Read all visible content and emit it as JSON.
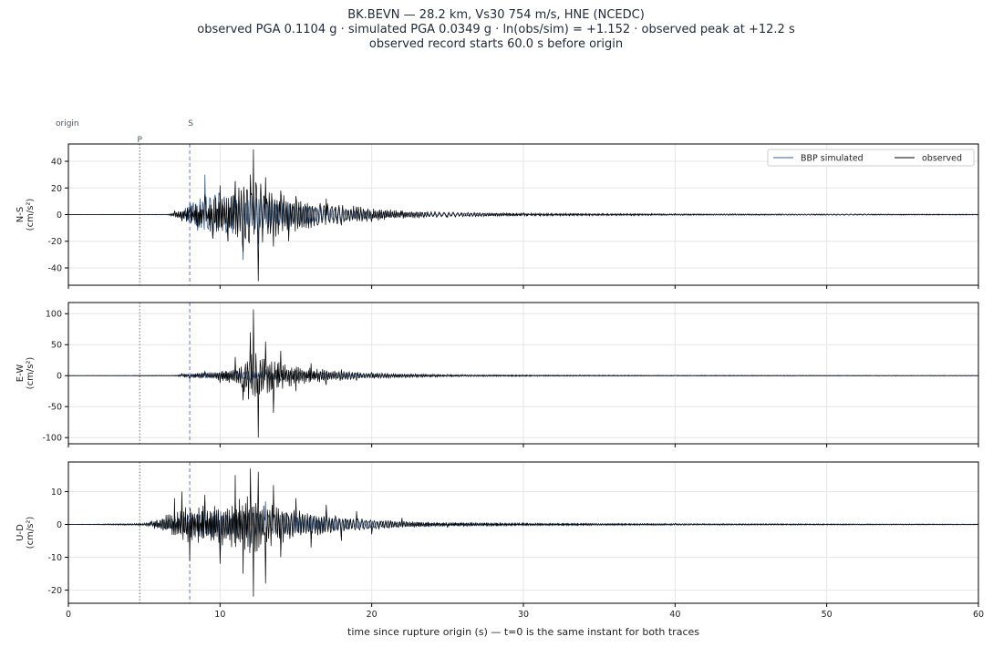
{
  "header": {
    "line1": "BK.BEVN  —  28.2 km, Vs30 754 m/s, HNE (NCEDC)",
    "line2": "observed PGA 0.1104 g   ·   simulated PGA 0.0349 g   ·   ln(obs/sim) = +1.152   ·   observed peak at +12.2 s",
    "line3": "observed record starts 60.0 s before origin"
  },
  "chart_data": {
    "type": "line",
    "xlabel": "time since rupture origin (s)   —   t=0 is the same instant for both traces",
    "xlim": [
      0,
      60
    ],
    "x_ticks": [
      0,
      10,
      20,
      30,
      40,
      50,
      60
    ],
    "grid": true,
    "colors": {
      "simulated": "#3b5f8f",
      "observed": "#000000",
      "p_line": "#6b6b6b",
      "s_line": "#6b6fd6"
    },
    "markers": [
      {
        "label": "origin",
        "t": 0
      },
      {
        "label": "P",
        "t": 4.7
      },
      {
        "label": "S",
        "t": 8.0
      }
    ],
    "legend": {
      "placement": "top-right",
      "entries": [
        "BBP simulated",
        "observed"
      ]
    },
    "panels": [
      {
        "component": "N-S",
        "ylabel_line1": "N-S",
        "ylabel_line2": "(cm/s²)",
        "ylim": [
          -53,
          53
        ],
        "yticks": [
          -40,
          -20,
          0,
          20,
          40
        ],
        "show_legend": true,
        "series": [
          {
            "name": "BBP simulated",
            "x": [
              0,
              6.5,
              7.0,
              7.5,
              8.0,
              8.5,
              9.0,
              9.5,
              10.0,
              10.5,
              11.0,
              11.5,
              12.0,
              12.5,
              13.0,
              13.5,
              14.0,
              14.5,
              15.0,
              16.0,
              17.0,
              18.0,
              19.0,
              20.0,
              22.0,
              25.0,
              30.0,
              40.0,
              60.0
            ],
            "y": [
              0,
              0,
              2,
              -4,
              8,
              -12,
              30,
              -18,
              14,
              -20,
              25,
              -34,
              18,
              -22,
              16,
              -14,
              12,
              -15,
              10,
              -8,
              6,
              -5,
              4,
              -3,
              2,
              -1,
              0.8,
              0.5,
              0
            ],
            "amp": [
              0,
              0.1,
              0.8,
              2.2,
              7.0,
              10.0,
              14.0,
              14.0,
              13.0,
              12.0,
              12.0,
              11.0,
              11.0,
              10.0,
              9.0,
              8.5,
              8.0,
              8.0,
              7.0,
              6.0,
              5.0,
              4.0,
              3.0,
              2.5,
              1.6,
              1.0,
              0.6,
              0.4,
              0.2
            ]
          },
          {
            "name": "observed",
            "x": [
              0,
              6.5,
              7.0,
              7.5,
              8.0,
              8.5,
              9.0,
              9.5,
              10.0,
              10.5,
              11.0,
              11.5,
              12.0,
              12.2,
              12.5,
              13.0,
              13.5,
              14.0,
              14.5,
              15.0,
              16.0,
              17.0,
              18.0,
              19.0,
              20.0,
              22.0,
              25.0,
              30.0,
              40.0,
              60.0
            ],
            "y": [
              0,
              0,
              3,
              -5,
              6,
              -9,
              15,
              -18,
              22,
              -20,
              25,
              -28,
              30,
              49,
              -50,
              28,
              -24,
              18,
              -20,
              14,
              -10,
              12,
              -8,
              6,
              -5,
              3,
              -2,
              1.2,
              0.8,
              0
            ],
            "amp": [
              0,
              0.2,
              1.5,
              3.0,
              5.0,
              7.0,
              9.0,
              11.0,
              12.0,
              13.0,
              15.0,
              17.0,
              19.0,
              20.0,
              20.0,
              17.0,
              15.0,
              13.0,
              12.0,
              11.0,
              9.0,
              7.0,
              6.0,
              5.0,
              4.0,
              2.5,
              1.5,
              0.9,
              0.5,
              0.3
            ]
          }
        ]
      },
      {
        "component": "E-W",
        "ylabel_line1": "E-W",
        "ylabel_line2": "(cm/s²)",
        "ylim": [
          -110,
          118
        ],
        "yticks": [
          -100,
          -50,
          0,
          50,
          100
        ],
        "show_legend": false,
        "series": [
          {
            "name": "BBP simulated",
            "x": [
              0,
              7.0,
              7.5,
              8.0,
              9.0,
              10.0,
              11.0,
              12.0,
              13.0,
              14.0,
              15.0,
              16.0,
              17.0,
              18.0,
              19.0,
              20.0,
              22.0,
              25.0,
              30.0,
              40.0,
              60.0
            ],
            "y": [
              0,
              0,
              3,
              -5,
              8,
              -10,
              14,
              -12,
              10,
              -9,
              8,
              -7,
              6,
              -5,
              4,
              -3,
              2,
              -1.5,
              1,
              0.5,
              0
            ],
            "amp": [
              0,
              0.2,
              2.0,
              3.0,
              4.0,
              5.0,
              6.0,
              6.0,
              5.5,
              5.0,
              5.0,
              4.5,
              4.0,
              3.5,
              3.0,
              2.5,
              1.8,
              1.2,
              0.8,
              0.5,
              0.3
            ]
          },
          {
            "name": "observed",
            "x": [
              0,
              7.0,
              7.5,
              8.0,
              9.0,
              10.0,
              11.0,
              11.5,
              12.0,
              12.2,
              12.5,
              13.0,
              13.5,
              14.0,
              15.0,
              16.0,
              17.0,
              18.0,
              19.0,
              20.0,
              22.0,
              25.0,
              30.0,
              40.0,
              60.0
            ],
            "y": [
              0,
              0,
              3,
              -4,
              6,
              -12,
              30,
              -40,
              70,
              107,
              -100,
              55,
              -60,
              40,
              -25,
              20,
              -15,
              10,
              -8,
              5,
              -3,
              2,
              -1,
              0.5,
              0
            ],
            "amp": [
              0,
              0.5,
              1.5,
              2.5,
              4.0,
              6.0,
              12.0,
              22.0,
              32.0,
              35.0,
              35.0,
              30.0,
              24.0,
              18.0,
              12.0,
              10.0,
              8.0,
              6.5,
              5.0,
              4.0,
              2.5,
              1.5,
              0.9,
              0.5,
              0.3
            ]
          }
        ]
      },
      {
        "component": "U-D",
        "ylabel_line1": "U-D",
        "ylabel_line2": "(cm/s²)",
        "ylim": [
          -24,
          19
        ],
        "yticks": [
          -20,
          -10,
          0,
          10
        ],
        "show_legend": false,
        "series": [
          {
            "name": "BBP simulated",
            "x": [
              0,
              5.0,
              5.5,
              6.0,
              7.0,
              8.0,
              9.0,
              10.0,
              11.0,
              12.0,
              13.0,
              14.0,
              15.0,
              16.0,
              17.0,
              18.0,
              19.0,
              20.0,
              22.0,
              25.0,
              30.0,
              40.0,
              60.0
            ],
            "y": [
              0,
              0,
              0.5,
              -1,
              3,
              -6,
              7,
              -8,
              8,
              -7,
              7,
              -6,
              5,
              -4,
              4,
              -3,
              2,
              -2,
              1,
              -0.6,
              0.4,
              0.2,
              0
            ],
            "amp": [
              0,
              0.2,
              0.6,
              1.0,
              2.0,
              3.0,
              3.5,
              3.5,
              3.5,
              3.2,
              3.0,
              2.8,
              2.5,
              2.2,
              2.0,
              1.6,
              1.3,
              1.0,
              0.7,
              0.4,
              0.3,
              0.2,
              0.1
            ]
          },
          {
            "name": "observed",
            "x": [
              0,
              5.0,
              5.5,
              6.0,
              7.0,
              7.5,
              8.0,
              9.0,
              10.0,
              11.0,
              11.5,
              12.0,
              12.2,
              12.5,
              13.0,
              13.5,
              14.0,
              15.0,
              16.0,
              17.0,
              18.0,
              19.0,
              20.0,
              22.0,
              25.0,
              30.0,
              40.0,
              60.0
            ],
            "y": [
              0,
              0,
              1,
              -1,
              8,
              10,
              -11,
              9,
              -12,
              15,
              -15,
              17,
              -22,
              16,
              -18,
              12,
              -10,
              8,
              -7,
              6,
              -5,
              4,
              -3,
              2,
              -1,
              0.5,
              0.3,
              0
            ],
            "amp": [
              0,
              0.3,
              0.8,
              1.5,
              3.5,
              4.5,
              4.5,
              4.5,
              5.0,
              6.0,
              6.5,
              7.0,
              7.0,
              6.5,
              6.0,
              5.0,
              4.5,
              3.5,
              3.0,
              2.5,
              2.0,
              1.6,
              1.3,
              0.8,
              0.5,
              0.3,
              0.2,
              0.1
            ]
          }
        ]
      }
    ]
  }
}
